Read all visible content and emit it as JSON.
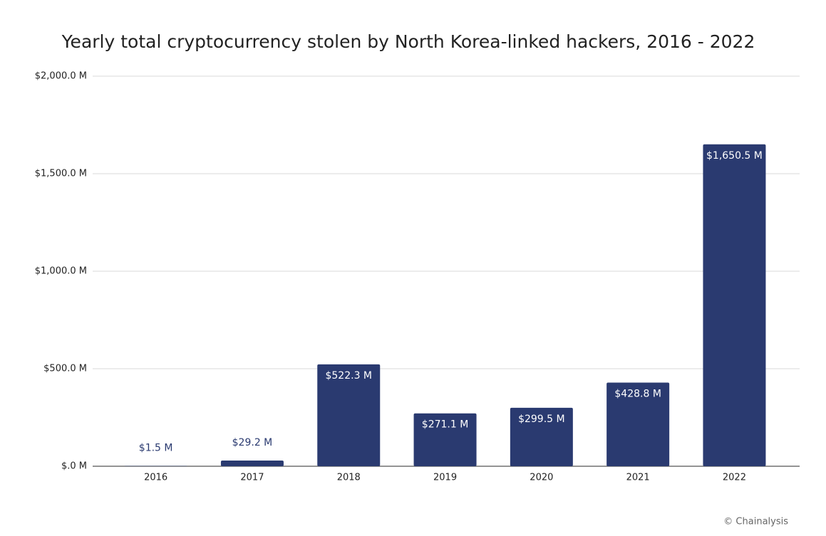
{
  "chart_data": {
    "type": "bar",
    "title": "Yearly total cryptocurrency stolen by North Korea-linked hackers, 2016 - 2022",
    "categories": [
      "2016",
      "2017",
      "2018",
      "2019",
      "2020",
      "2021",
      "2022"
    ],
    "values": [
      1.5,
      29.2,
      522.3,
      271.1,
      299.5,
      428.8,
      1650.5
    ],
    "value_labels": [
      "$1.5 M",
      "$29.2 M",
      "$522.3 M",
      "$271.1 M",
      "$299.5 M",
      "$428.8 M",
      "$1,650.5 M"
    ],
    "color": "#2a3a70",
    "ylim": [
      0,
      2000
    ],
    "yticks": [
      {
        "value": 0,
        "label": "$.0 M"
      },
      {
        "value": 500,
        "label": "$500.0 M"
      },
      {
        "value": 1000,
        "label": "$1,000.0 M"
      },
      {
        "value": 1500,
        "label": "$1,500.0 M"
      },
      {
        "value": 2000,
        "label": "$2,000.0 M"
      }
    ],
    "grid": true,
    "source": "© Chainalysis"
  }
}
